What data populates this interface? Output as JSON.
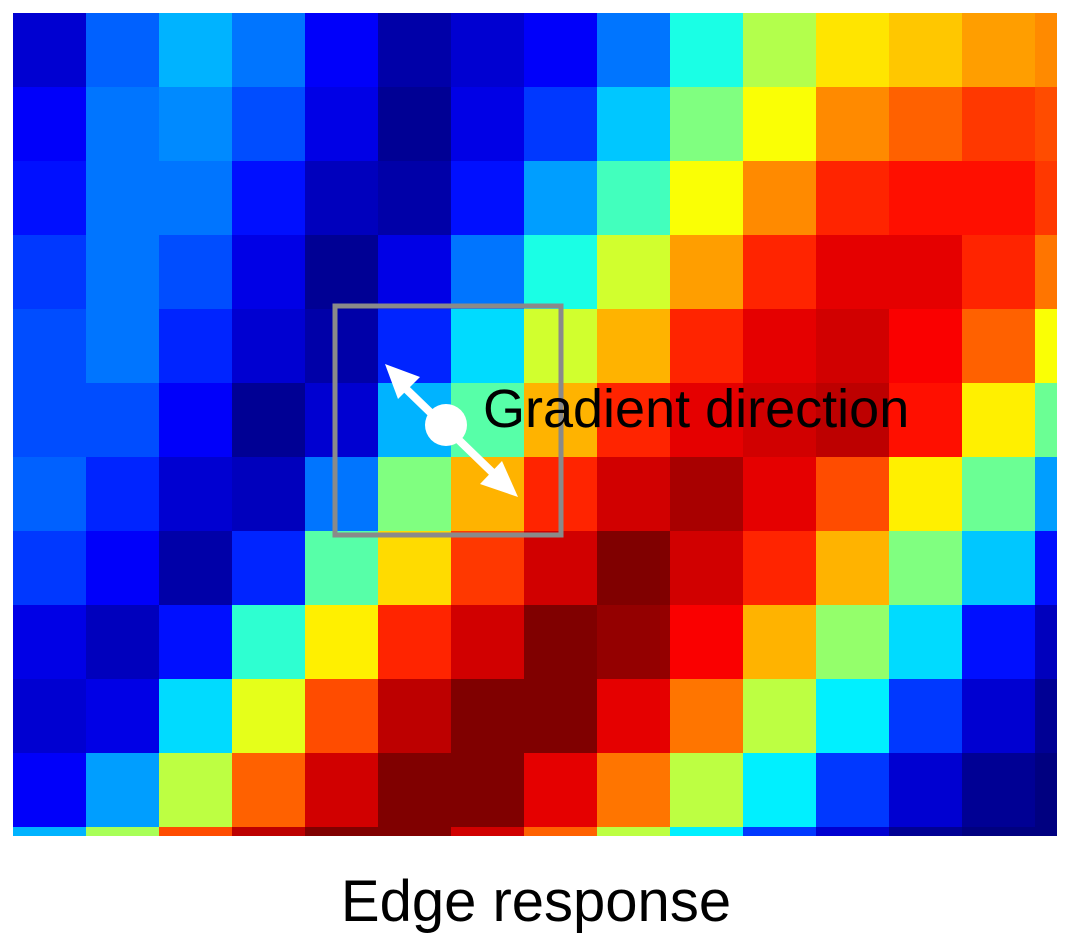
{
  "heatmap": {
    "rows": 12,
    "cols": 15,
    "colormap": "jet",
    "last_row_partial": true,
    "values": [
      [
        0.08,
        0.22,
        0.3,
        0.24,
        0.12,
        0.04,
        0.08,
        0.12,
        0.24,
        0.4,
        0.55,
        0.65,
        0.68,
        0.72,
        0.74
      ],
      [
        0.12,
        0.24,
        0.26,
        0.2,
        0.1,
        0.02,
        0.1,
        0.18,
        0.32,
        0.5,
        0.62,
        0.74,
        0.78,
        0.82,
        0.8
      ],
      [
        0.14,
        0.24,
        0.24,
        0.14,
        0.06,
        0.04,
        0.14,
        0.28,
        0.44,
        0.62,
        0.74,
        0.84,
        0.86,
        0.86,
        0.82
      ],
      [
        0.18,
        0.24,
        0.2,
        0.1,
        0.02,
        0.1,
        0.24,
        0.4,
        0.58,
        0.72,
        0.84,
        0.9,
        0.9,
        0.84,
        0.76
      ],
      [
        0.2,
        0.24,
        0.16,
        0.08,
        0.04,
        0.16,
        0.34,
        0.58,
        0.7,
        0.84,
        0.9,
        0.92,
        0.88,
        0.78,
        0.62
      ],
      [
        0.2,
        0.2,
        0.12,
        0.02,
        0.08,
        0.3,
        0.46,
        0.7,
        0.84,
        0.9,
        0.92,
        0.94,
        0.86,
        0.64,
        0.48
      ],
      [
        0.22,
        0.16,
        0.08,
        0.06,
        0.24,
        0.5,
        0.7,
        0.84,
        0.92,
        0.96,
        0.9,
        0.8,
        0.64,
        0.48,
        0.28
      ],
      [
        0.18,
        0.12,
        0.04,
        0.16,
        0.46,
        0.66,
        0.82,
        0.92,
        1.0,
        0.92,
        0.84,
        0.7,
        0.5,
        0.32,
        0.14
      ],
      [
        0.1,
        0.06,
        0.14,
        0.42,
        0.64,
        0.84,
        0.92,
        1.0,
        0.98,
        0.88,
        0.7,
        0.52,
        0.34,
        0.14,
        0.06
      ],
      [
        0.08,
        0.1,
        0.34,
        0.6,
        0.8,
        0.94,
        1.0,
        1.0,
        0.9,
        0.76,
        0.56,
        0.36,
        0.18,
        0.08,
        0.02
      ],
      [
        0.12,
        0.28,
        0.56,
        0.78,
        0.92,
        1.0,
        1.0,
        0.9,
        0.76,
        0.56,
        0.36,
        0.18,
        0.08,
        0.02,
        0.0
      ],
      [
        0.3,
        0.54,
        0.8,
        0.94,
        1.0,
        1.0,
        0.92,
        0.78,
        0.56,
        0.36,
        0.18,
        0.08,
        0.02,
        0.0,
        0.0
      ]
    ]
  },
  "annotation": {
    "label": "Gradient direction",
    "window_color": "#8a8a8a",
    "arrow_color": "#ffffff"
  },
  "caption": "Edge response"
}
